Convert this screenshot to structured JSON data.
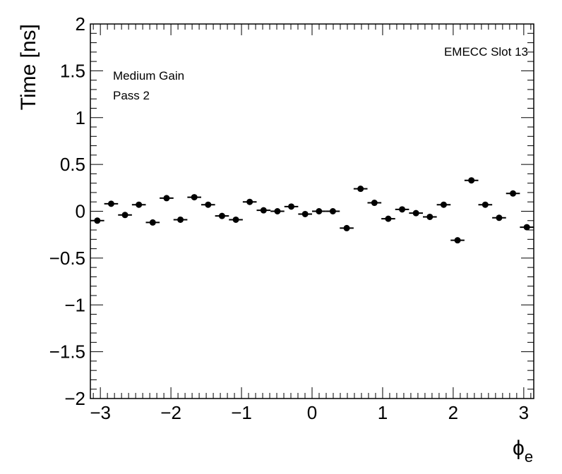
{
  "chart_data": {
    "type": "scatter",
    "ylabel": "Time [ns]",
    "xlabel_symbol": "ϕ",
    "xlabel_subscript": "e",
    "annotations": {
      "top_right": "EMECC Slot 13",
      "line1": "Medium Gain",
      "line2": "Pass 2"
    },
    "xlim": [
      -3.1416,
      3.1416
    ],
    "ylim": [
      -2,
      2
    ],
    "x_ticks": [
      -3,
      -2,
      -1,
      0,
      1,
      2,
      3
    ],
    "x_tick_labels": [
      "−3",
      "−2",
      "−1",
      "0",
      "1",
      "2",
      "3"
    ],
    "y_ticks": [
      2,
      1.5,
      1,
      0.5,
      0,
      -0.5,
      -1,
      -1.5,
      -2
    ],
    "y_tick_labels": [
      "2",
      "1.5",
      "1",
      "0.5",
      "0",
      "−0.5",
      "−1",
      "−1.5",
      "−2"
    ],
    "bin_width": 0.19635,
    "x": [
      -3.0434,
      -2.8471,
      -2.6507,
      -2.4544,
      -2.258,
      -2.0617,
      -1.8653,
      -1.669,
      -1.4726,
      -1.2763,
      -1.0799,
      -0.8836,
      -0.6872,
      -0.4909,
      -0.2945,
      -0.0982,
      0.0982,
      0.2945,
      0.4909,
      0.6872,
      0.8836,
      1.0799,
      1.2763,
      1.4726,
      1.669,
      1.8653,
      2.0617,
      2.258,
      2.4544,
      2.6507,
      2.8471,
      3.0434
    ],
    "y": [
      -0.1,
      0.08,
      -0.04,
      0.07,
      -0.12,
      0.14,
      -0.09,
      0.15,
      0.07,
      -0.05,
      -0.09,
      0.1,
      0.01,
      0.0,
      0.05,
      -0.03,
      0.0,
      0.0,
      -0.18,
      0.24,
      0.09,
      -0.08,
      0.02,
      -0.02,
      -0.06,
      0.07,
      -0.31,
      0.33,
      0.07,
      -0.07,
      0.19,
      -0.17
    ]
  }
}
